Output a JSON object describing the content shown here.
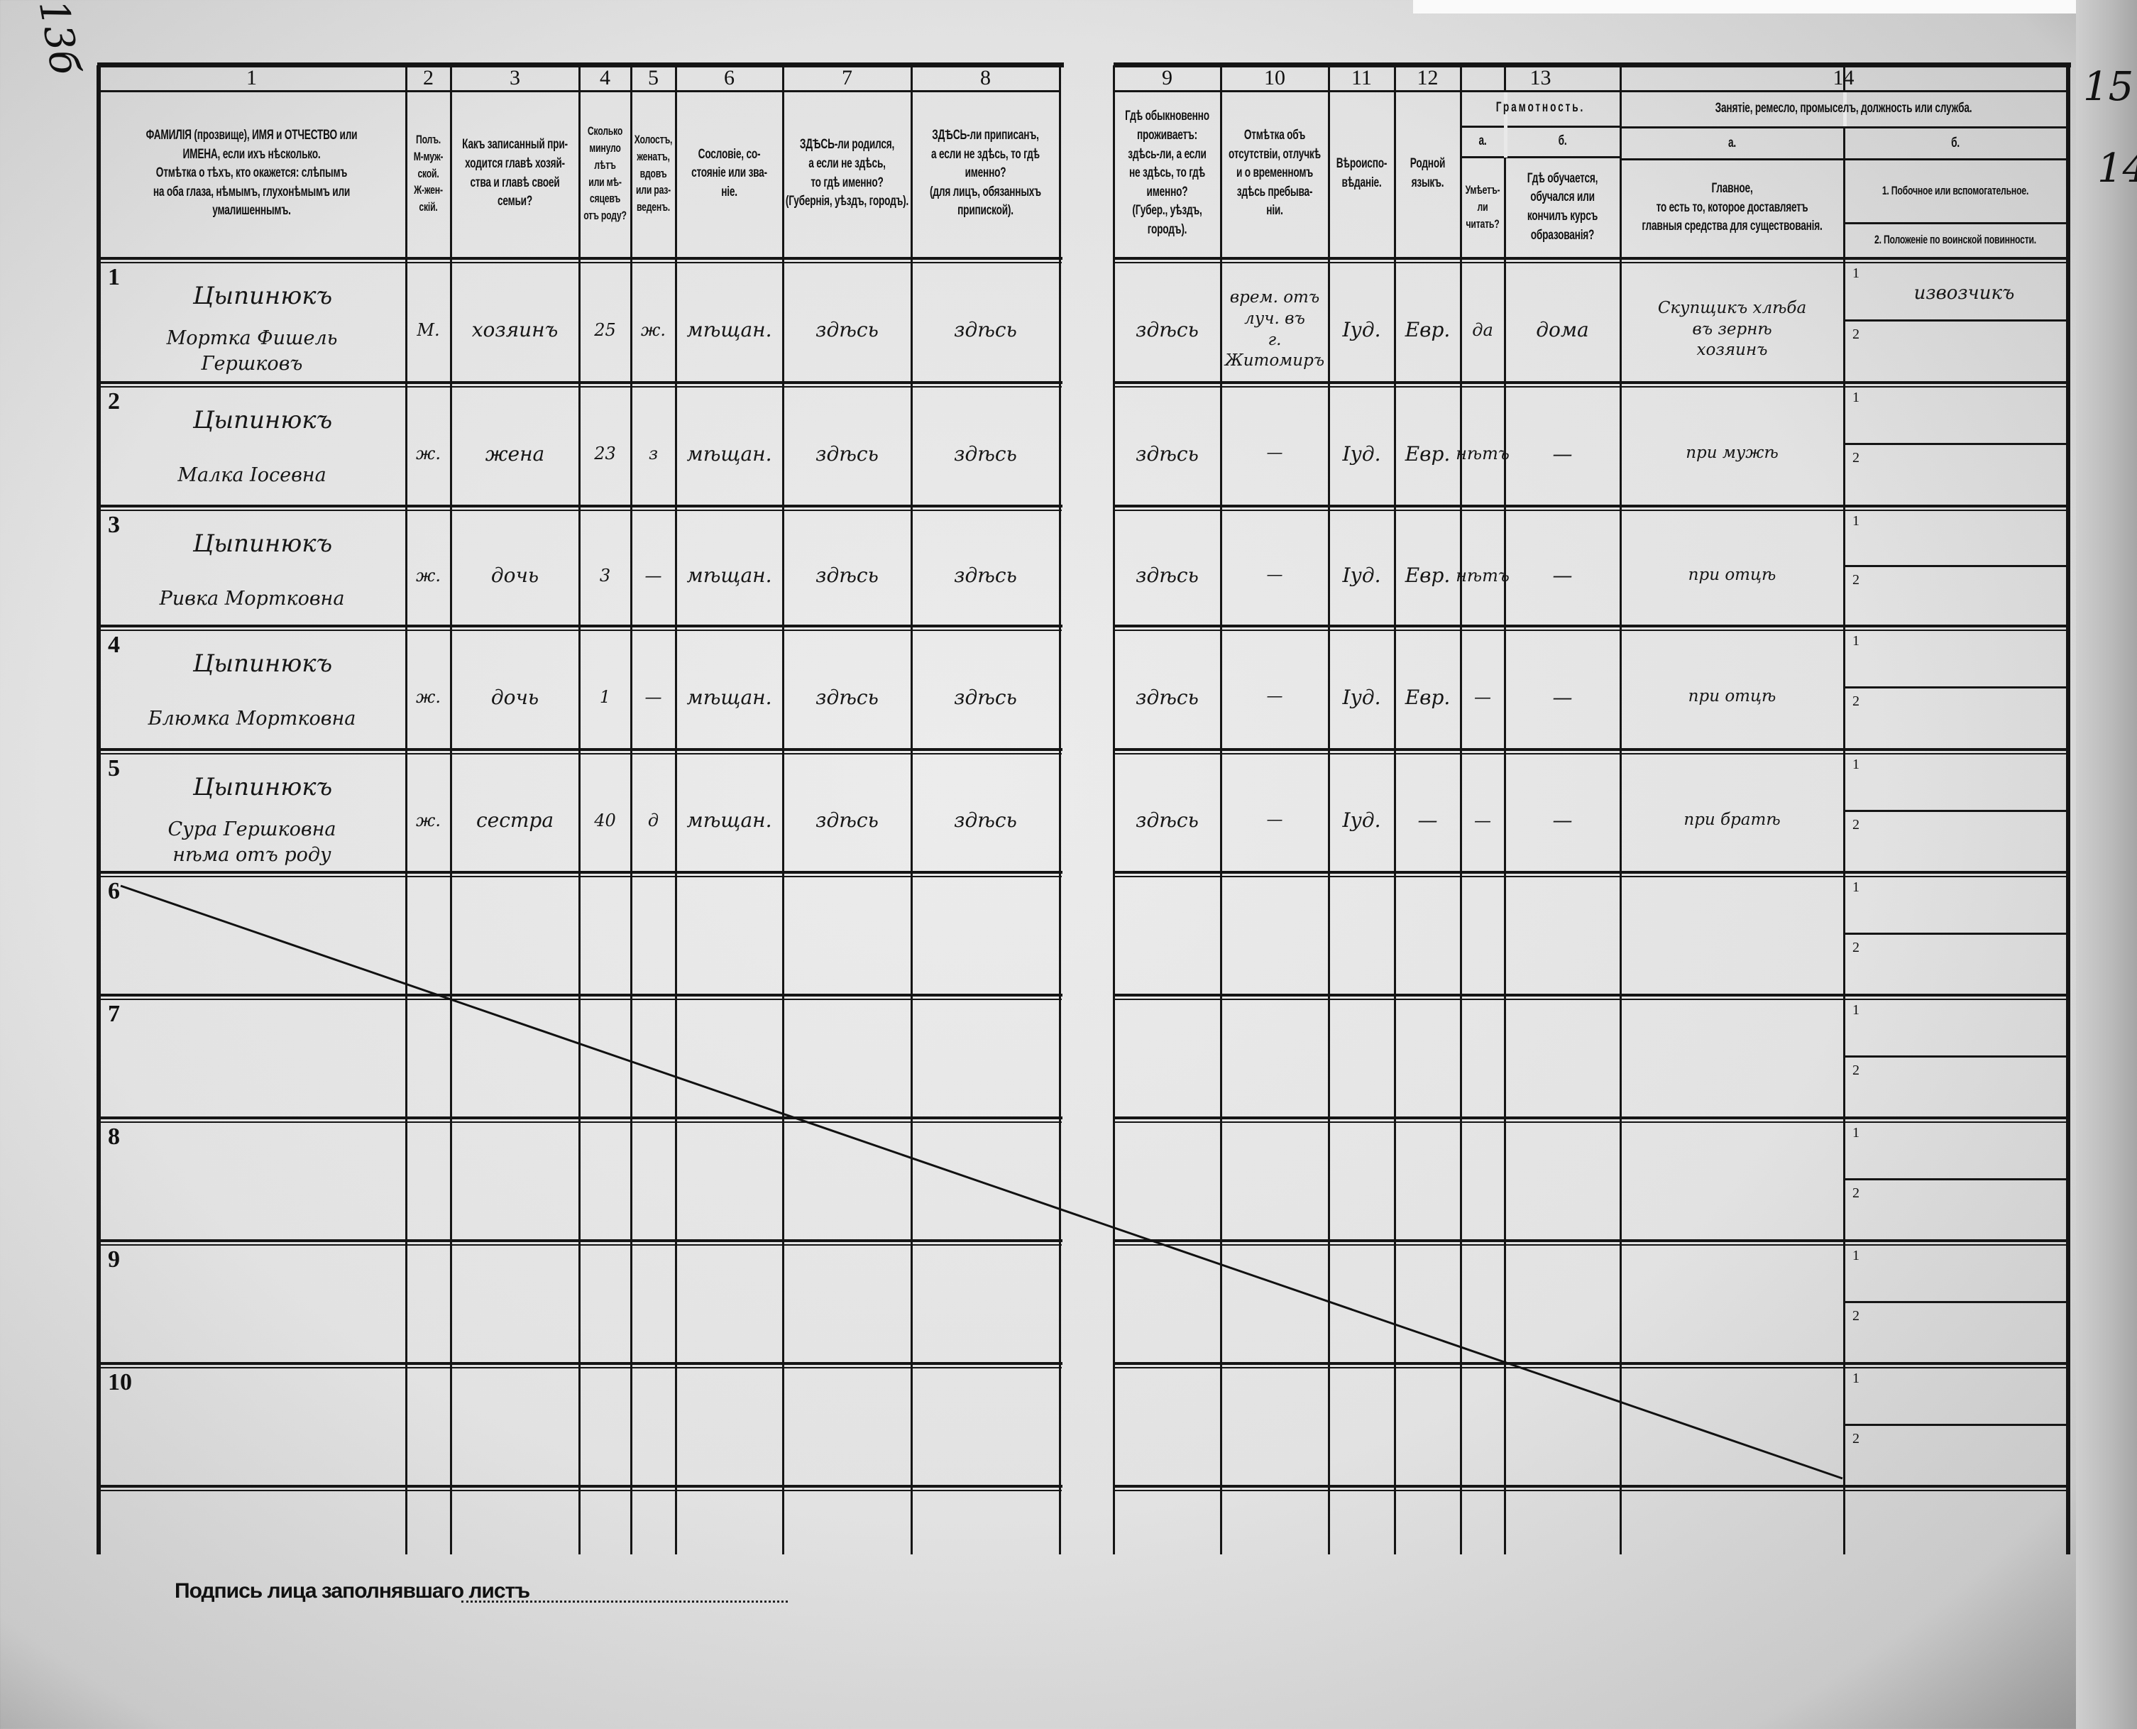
{
  "corner_marks": {
    "left": "13б",
    "right_a": "15",
    "right_b": "14"
  },
  "columns": [
    {
      "num": "1",
      "header": "ФАМИЛІЯ (прозвище), ИМЯ и ОТЧЕСТВО или\nИМЕНА, если ихъ нѣсколько.\nОтмѣтка о тѣхъ, кто окажется: слѣпымъ\nна оба глаза, нѣмымъ, глухонѣмымъ или\nумалишеннымъ."
    },
    {
      "num": "2",
      "header": "Полъ.\nМ-муж-\nской.\nЖ-жен-\nскій."
    },
    {
      "num": "3",
      "header": "Какъ записанный при-\nходится главѣ хозяй-\nства и главѣ своей\nсемьи?"
    },
    {
      "num": "4",
      "header": "Сколько\nминуло\nлѣтъ\nили мѣ-\nсяцевъ\nотъ роду?"
    },
    {
      "num": "5",
      "header": "Холостъ,\nженатъ,\nвдовъ\nили раз-\nведенъ."
    },
    {
      "num": "6",
      "header": "Сословіе, со-\nстояніе или зва-\nніе."
    },
    {
      "num": "7",
      "header": "ЗДѢСЬ-ли родился,\nа если не здѣсь,\nто гдѣ именно?\n(Губернія, уѣздъ, городъ)."
    },
    {
      "num": "8",
      "header": "ЗДѢСЬ-ли приписанъ,\nа если не здѣсь, то гдѣ\nименно?\n(для лицъ, обязанныхъ\nприпиской)."
    },
    {
      "num": "9",
      "header": "Гдѣ обыкновенно\nпроживаетъ:\nздѣсь-ли, а если\nне здѣсь, то гдѣ\nименно?\n(Губер., уѣздъ, городъ)."
    },
    {
      "num": "10",
      "header": "Отмѣтка объ\nотсутствіи, отлучкѣ\nи о временномъ\nздѣсь пребыва-\nніи."
    },
    {
      "num": "11",
      "header": "Вѣроиспо-\nвѣданіе."
    },
    {
      "num": "12",
      "header": "Родной\nязыкъ."
    }
  ],
  "group13": {
    "num": "13",
    "title": "Грамотность.",
    "a": "а.",
    "b": "б.",
    "a_header": "Умѣетъ-\nли\nчитать?",
    "b_header": "Гдѣ обучается,\nобучался или\nкончилъ курсъ\nобразованія?"
  },
  "group14": {
    "num": "14",
    "title": "Занятіе, ремесло, промыселъ, должность или служба.",
    "a": "а.",
    "b": "б.",
    "a_header": "Главное,\nто есть то, которое доставляетъ\nглавныя средства для существованія.",
    "b1_header": "1. Побочное или вспомогательное.",
    "b2_header": "2. Положеніе по воинской повинности."
  },
  "subrow_labels": [
    "1",
    "2"
  ],
  "rows": [
    {
      "n": "1",
      "surname": "Цыпинюкъ",
      "names": "Мортка Фишель\nГершковъ",
      "sex": "М.",
      "relation": "хозяинъ",
      "age": "25",
      "marital": "ж.",
      "estate": "мѣщан.",
      "born": "здѣсь",
      "registered": "здѣсь",
      "residence": "здѣсь",
      "absence": "врем. отъ\nлуч. въ\nг. Житомиръ",
      "religion": "Іуд.",
      "language": "Евр.",
      "literate": "да",
      "education": "дома",
      "occupation": "Скупщикъ хлѣба\nвъ зернѣ\nхозяинъ",
      "secondary": "извозчикъ"
    },
    {
      "n": "2",
      "surname": "Цыпинюкъ",
      "names": "Малка Іосевна",
      "sex": "ж.",
      "relation": "жена",
      "age": "23",
      "marital": "з",
      "estate": "мѣщан.",
      "born": "здѣсь",
      "registered": "здѣсь",
      "residence": "здѣсь",
      "absence": "—",
      "religion": "Іуд.",
      "language": "Евр.",
      "literate": "нѣтъ",
      "education": "—",
      "occupation": "при мужѣ",
      "secondary": ""
    },
    {
      "n": "3",
      "surname": "Цыпинюкъ",
      "names": "Ривка Мортковна",
      "sex": "ж.",
      "relation": "дочь",
      "age": "3",
      "marital": "—",
      "estate": "мѣщан.",
      "born": "здѣсь",
      "registered": "здѣсь",
      "residence": "здѣсь",
      "absence": "—",
      "religion": "Іуд.",
      "language": "Евр.",
      "literate": "нѣтъ",
      "education": "—",
      "occupation": "при отцѣ",
      "secondary": ""
    },
    {
      "n": "4",
      "surname": "Цыпинюкъ",
      "names": "Блюмка Мортковна",
      "sex": "ж.",
      "relation": "дочь",
      "age": "1",
      "marital": "—",
      "estate": "мѣщан.",
      "born": "здѣсь",
      "registered": "здѣсь",
      "residence": "здѣсь",
      "absence": "—",
      "religion": "Іуд.",
      "language": "Евр.",
      "literate": "—",
      "education": "—",
      "occupation": "при отцѣ",
      "secondary": ""
    },
    {
      "n": "5",
      "surname": "Цыпинюкъ",
      "names": "Сура Гершковна\nнѣма отъ роду",
      "sex": "ж.",
      "relation": "сестра",
      "age": "40",
      "marital": "д",
      "estate": "мѣщан.",
      "born": "здѣсь",
      "registered": "здѣсь",
      "residence": "здѣсь",
      "absence": "—",
      "religion": "Іуд.",
      "language": "—",
      "literate": "—",
      "education": "—",
      "occupation": "при братѣ",
      "secondary": ""
    }
  ],
  "empty_rows": [
    "6",
    "7",
    "8",
    "9",
    "10"
  ],
  "signature_label": "Подпись лица заполнявшаго листъ"
}
